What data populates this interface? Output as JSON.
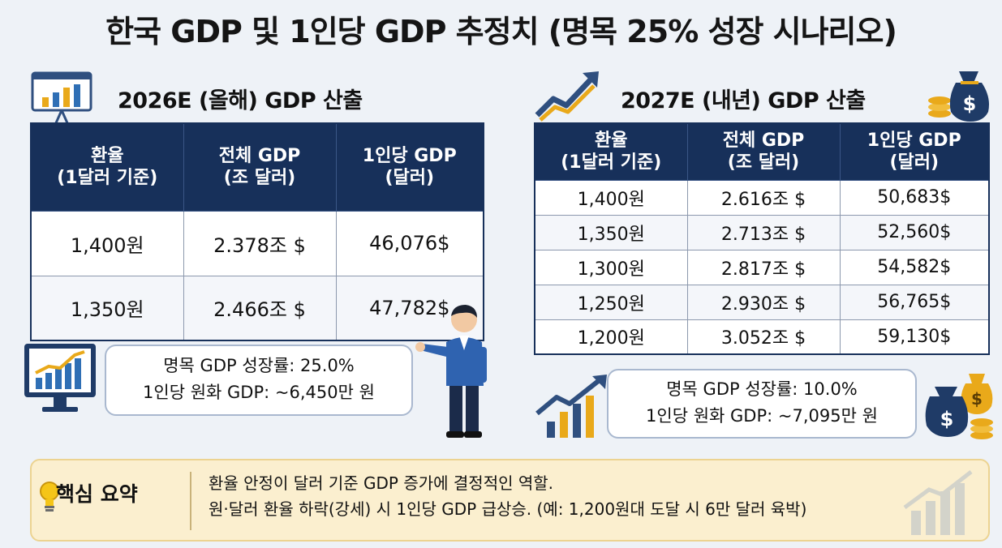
{
  "title": "한국 GDP 및 1인당 GDP 추정치 (명목 25% 성장 시나리오)",
  "section_2026": {
    "heading": "2026E (올해) GDP 산출",
    "headers": [
      "환율\n(1달러 기준)",
      "전체 GDP\n(조 달러)",
      "1인당 GDP\n(달러)"
    ],
    "rows": [
      [
        "1,400원",
        "2.378조 $",
        "46,076$"
      ],
      [
        "1,350원",
        "2.466조 $",
        "47,782$"
      ]
    ],
    "note_line1": "명목 GDP 성장률: 25.0%",
    "note_line2": "1인당 원화 GDP: ~6,450만 원"
  },
  "section_2027": {
    "heading": "2027E (내년) GDP 산출",
    "headers": [
      "환율\n(1달러 기준)",
      "전체 GDP\n(조 달러)",
      "1인당 GDP\n(달러)"
    ],
    "rows": [
      [
        "1,400원",
        "2.616조 $",
        "50,683$"
      ],
      [
        "1,350원",
        "2.713조 $",
        "52,560$"
      ],
      [
        "1,300원",
        "2.817조 $",
        "54,582$"
      ],
      [
        "1,250원",
        "2.930조 $",
        "56,765$"
      ],
      [
        "1,200원",
        "3.052조 $",
        "59,130$"
      ]
    ],
    "note_line1": "명목 GDP 성장률: 10.0%",
    "note_line2": "1인당 원화 GDP: ~7,095만 원"
  },
  "summary": {
    "label": "핵심 요약",
    "line1": "환율 안정이 달러 기준 GDP 증가에 결정적인 역할.",
    "line2": "원·달러 환율 하락(강세) 시 1인당 GDP 급상승. (예: 1,200원대 도달 시 6만 달러 육박)"
  },
  "icons": [
    "presentation-chart-icon",
    "growth-arrow-icon",
    "money-bag-icon",
    "monitor-chart-icon",
    "presenter-person-icon",
    "lightbulb-icon",
    "faded-chart-icon"
  ],
  "colors": {
    "header_navy": "#17305a",
    "accent_gold": "#e9a91a",
    "summary_bg": "#fbefcf"
  }
}
